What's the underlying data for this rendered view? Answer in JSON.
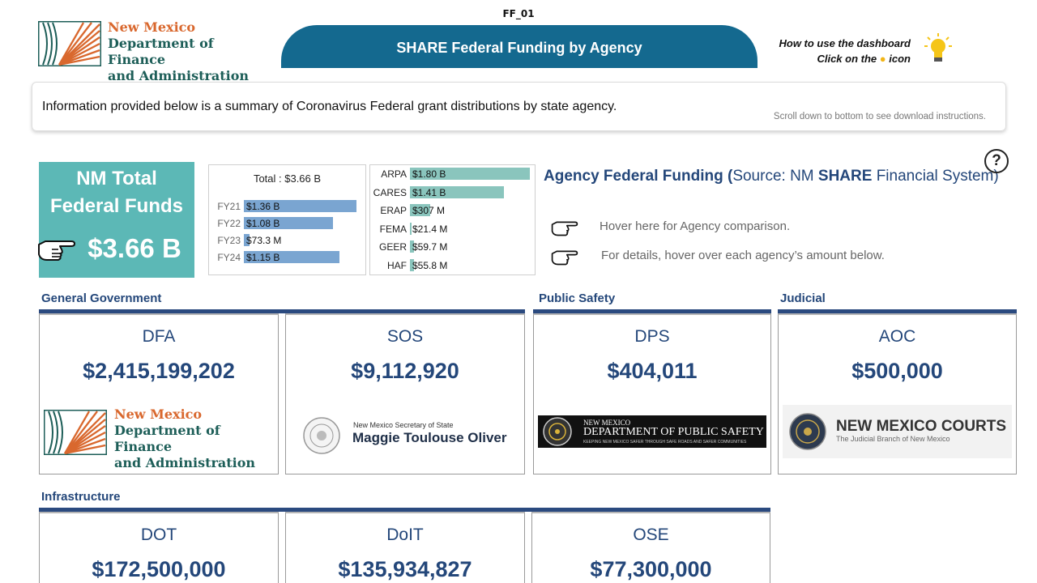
{
  "report_code": "FF_01",
  "header": {
    "logo_lines": [
      "New Mexico",
      "Department of Finance",
      "and Administration"
    ],
    "banner_title": "SHARE Federal Funding by Agency",
    "howto_line1": "How to use the dashboard",
    "howto_line2_pre": "Click on the",
    "howto_line2_post": "icon",
    "bulb_icon": "lightbulb-icon"
  },
  "info": {
    "text": "Information provided below is a summary of Coronavirus Federal grant distributions by state agency.",
    "sub": "Scroll down to bottom to see download instructions."
  },
  "total_card": {
    "title_line1": "NM Total",
    "title_line2": "Federal Funds",
    "value": "$3.66 B",
    "color": "#5cb8b6"
  },
  "agency_title": {
    "prefix": "Agency Federal Funding (",
    "source_pre": "Source: NM ",
    "source_bold": "SHARE",
    "source_post": " Financial System)"
  },
  "hints": [
    {
      "icon": "pointing-hand-icon",
      "text": "Hover here for Agency comparison."
    },
    {
      "icon": "pointing-hand-icon",
      "text": "For details, hover over each agency’s amount below."
    }
  ],
  "help_label": "?",
  "chart_data": [
    {
      "type": "bar",
      "orientation": "horizontal",
      "title": "Total : $3.66 B",
      "categories": [
        "FY21",
        "FY22",
        "FY23",
        "FY24"
      ],
      "values": [
        1.36,
        1.08,
        0.0733,
        1.15
      ],
      "value_labels": [
        "$1.36 B",
        "$1.08 B",
        "$73.3 M",
        "$1.15 B"
      ],
      "unit": "billions USD",
      "color": "#7aa5d1"
    },
    {
      "type": "bar",
      "orientation": "horizontal",
      "categories": [
        "ARPA",
        "CARES",
        "ERAP",
        "FEMA",
        "GEER",
        "HAF"
      ],
      "values": [
        1.8,
        1.41,
        0.307,
        0.0214,
        0.0597,
        0.0558
      ],
      "value_labels": [
        "$1.80 B",
        "$1.41 B",
        "$307 M",
        "$21.4 M",
        "$59.7 M",
        "$55.8 M"
      ],
      "unit": "billions USD",
      "color": "#8ac5bd"
    }
  ],
  "sections": [
    {
      "title": "General Government"
    },
    {
      "title": "Public Safety"
    },
    {
      "title": "Judicial"
    },
    {
      "title": "Infrastructure"
    }
  ],
  "agencies": [
    {
      "name": "DFA",
      "amount": "$2,415,199,202",
      "logo_lines": [
        "New Mexico",
        "Department of Finance",
        "and Administration"
      ]
    },
    {
      "name": "SOS",
      "amount": "$9,112,920",
      "logo_small": "New Mexico Secretary of State",
      "logo_big": "Maggie Toulouse Oliver"
    },
    {
      "name": "DPS",
      "amount": "$404,011",
      "logo_small": "NEW MEXICO",
      "logo_big": "DEPARTMENT OF PUBLIC SAFETY",
      "logo_tag": "KEEPING NEW MEXICO SAFER THROUGH SAFE ROADS AND SAFER COMMUNITIES"
    },
    {
      "name": "AOC",
      "amount": "$500,000",
      "logo_big": "NEW MEXICO COURTS",
      "logo_small": "The Judicial Branch of New Mexico"
    },
    {
      "name": "DOT",
      "amount": "$172,500,000"
    },
    {
      "name": "DoIT",
      "amount": "$135,934,827"
    },
    {
      "name": "OSE",
      "amount": "$77,300,000"
    }
  ],
  "colors": {
    "navy": "#24477a",
    "banner": "#14698f",
    "dfa_orange": "#d9682e",
    "dfa_teal": "#1d5e58"
  }
}
